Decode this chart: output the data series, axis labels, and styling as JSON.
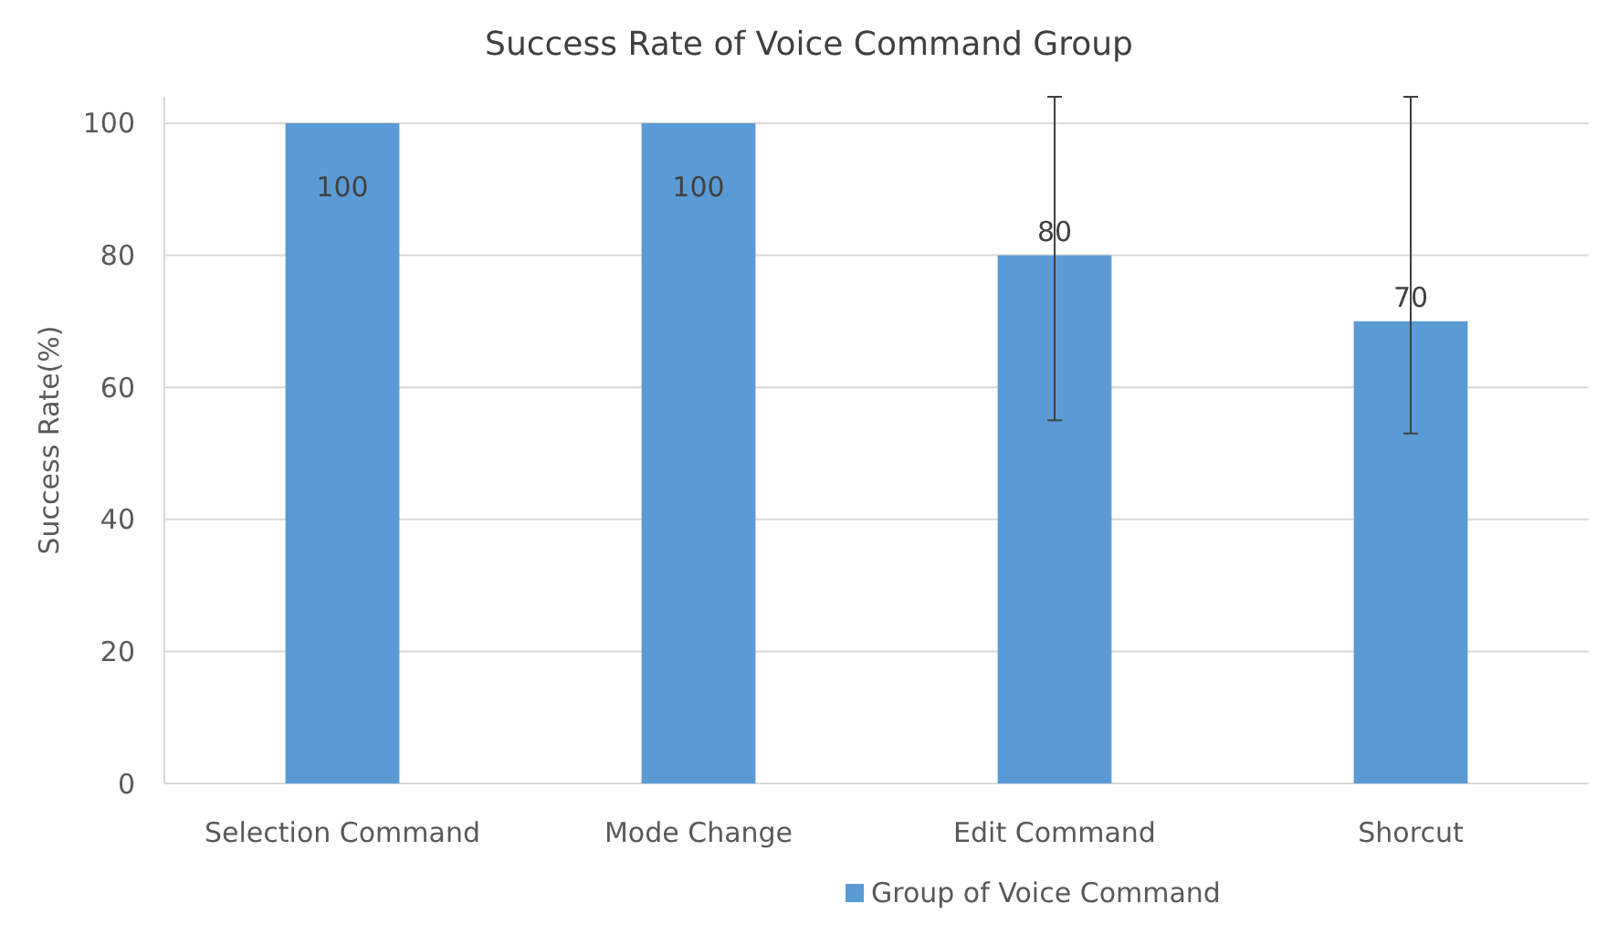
{
  "chart_data": {
    "type": "bar",
    "title": "Success Rate of Voice Command Group",
    "ylabel": "Success Rate(%)",
    "categories": [
      "Selection Command",
      "Mode Change",
      "Edit Command",
      "Shorcut"
    ],
    "series": [
      {
        "name": "Group of Voice Command",
        "color": "#5b9bd5",
        "values": [
          100,
          100,
          80,
          70
        ],
        "errors": [
          null,
          null,
          [
            55,
            104
          ],
          [
            53,
            104
          ]
        ]
      }
    ],
    "ylim": [
      0,
      104
    ],
    "yticks": [
      0,
      20,
      40,
      60,
      80,
      100
    ],
    "grid": "y",
    "legend": "bottom",
    "data_labels": true
  }
}
